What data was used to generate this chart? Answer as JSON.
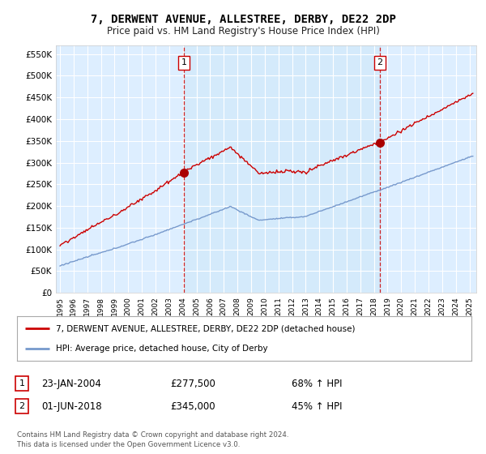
{
  "title": "7, DERWENT AVENUE, ALLESTREE, DERBY, DE22 2DP",
  "subtitle": "Price paid vs. HM Land Registry's House Price Index (HPI)",
  "yticks": [
    0,
    50000,
    100000,
    150000,
    200000,
    250000,
    300000,
    350000,
    400000,
    450000,
    500000,
    550000
  ],
  "ytick_labels": [
    "£0",
    "£50K",
    "£100K",
    "£150K",
    "£200K",
    "£250K",
    "£300K",
    "£350K",
    "£400K",
    "£450K",
    "£500K",
    "£550K"
  ],
  "xlim_start": 1994.7,
  "xlim_end": 2025.5,
  "ylim_min": 0,
  "ylim_max": 570000,
  "sale1_x": 2004.07,
  "sale1_y": 277500,
  "sale1_label": "1",
  "sale1_date": "23-JAN-2004",
  "sale1_price": "£277,500",
  "sale1_pct": "68% ↑ HPI",
  "sale2_x": 2018.42,
  "sale2_y": 345000,
  "sale2_label": "2",
  "sale2_date": "01-JUN-2018",
  "sale2_price": "£345,000",
  "sale2_pct": "45% ↑ HPI",
  "line1_color": "#cc0000",
  "line2_color": "#7799cc",
  "bg_color": "#ffffff",
  "plot_bg_color": "#ddeeff",
  "plot_bg_between_color": "#cce4f7",
  "grid_color": "#ffffff",
  "legend_label1": "7, DERWENT AVENUE, ALLESTREE, DERBY, DE22 2DP (detached house)",
  "legend_label2": "HPI: Average price, detached house, City of Derby",
  "footer1": "Contains HM Land Registry data © Crown copyright and database right 2024.",
  "footer2": "This data is licensed under the Open Government Licence v3.0.",
  "xticks": [
    1995,
    1996,
    1997,
    1998,
    1999,
    2000,
    2001,
    2002,
    2003,
    2004,
    2005,
    2006,
    2007,
    2008,
    2009,
    2010,
    2011,
    2012,
    2013,
    2014,
    2015,
    2016,
    2017,
    2018,
    2019,
    2020,
    2021,
    2022,
    2023,
    2024,
    2025
  ]
}
